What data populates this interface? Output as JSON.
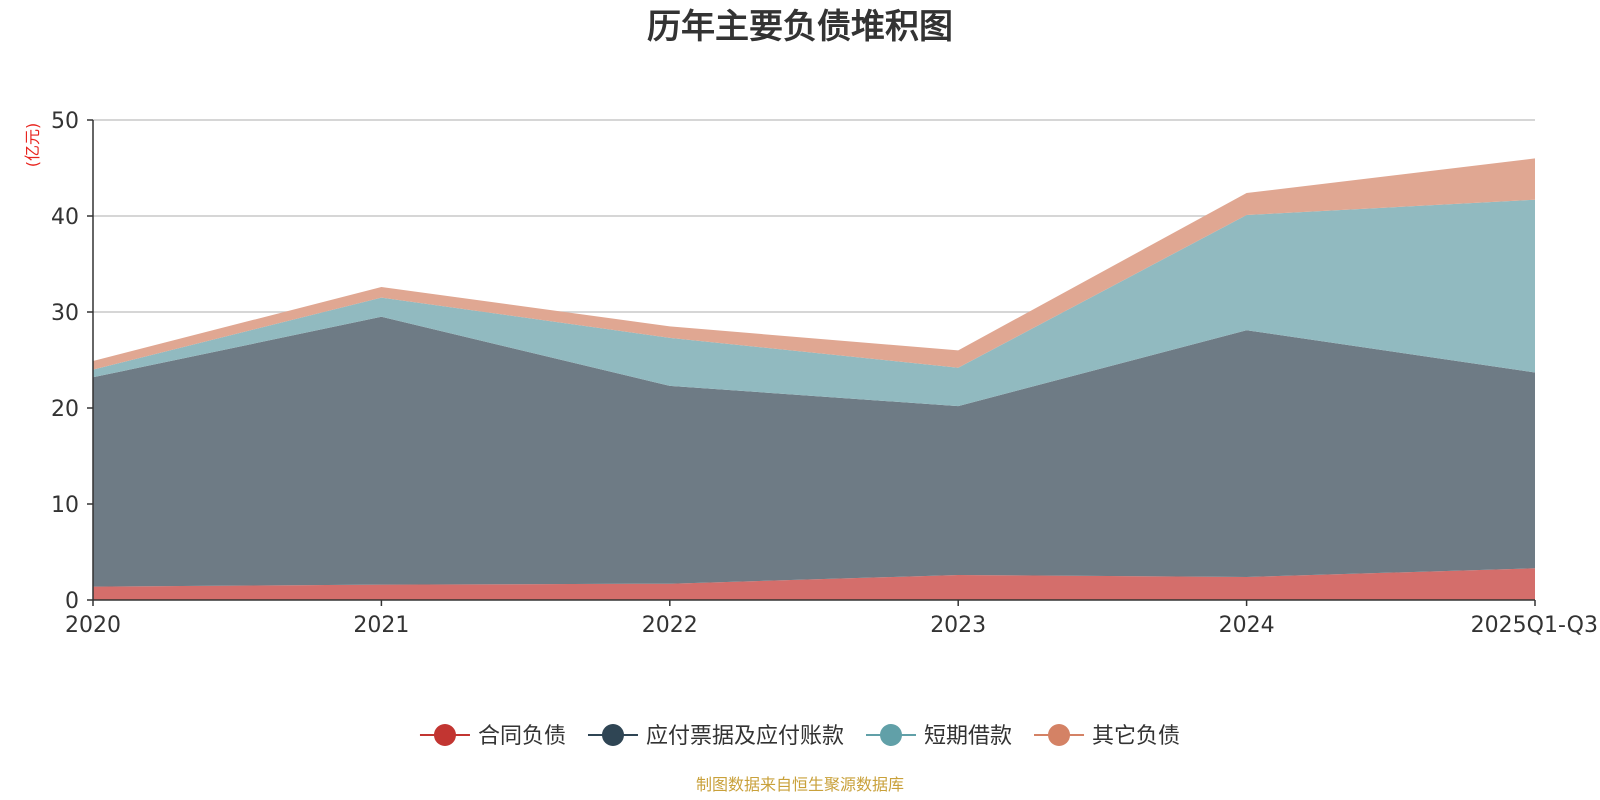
{
  "chart_data": {
    "type": "area",
    "stacked": true,
    "title": "历年主要负债堆积图",
    "ylabel": "(亿元)",
    "xlabel": "",
    "categories": [
      "2020",
      "2021",
      "2022",
      "2023",
      "2024",
      "2025Q1-Q3"
    ],
    "ylim": [
      0,
      50
    ],
    "yticks": [
      0,
      10,
      20,
      30,
      40,
      50
    ],
    "grid": true,
    "legend_position": "bottom-center",
    "series": [
      {
        "name": "合同负债",
        "color": "#c23531",
        "fill": "#d46e6b",
        "values": [
          1.4,
          1.6,
          1.7,
          2.6,
          2.4,
          3.3
        ]
      },
      {
        "name": "应付票据及应付账款",
        "color": "#2f4554",
        "fill": "#6e7b85",
        "values": [
          21.8,
          27.9,
          20.6,
          17.6,
          25.7,
          20.4
        ]
      },
      {
        "name": "短期借款",
        "color": "#61a0a8",
        "fill": "#91bac0",
        "values": [
          0.8,
          2.0,
          5.0,
          4.0,
          12.0,
          18.0
        ]
      },
      {
        "name": "其它负债",
        "color": "#d48265",
        "fill": "#e0a792",
        "values": [
          0.9,
          1.1,
          1.2,
          1.8,
          2.3,
          4.3
        ]
      }
    ],
    "source": "制图数据来自恒生聚源数据库"
  }
}
